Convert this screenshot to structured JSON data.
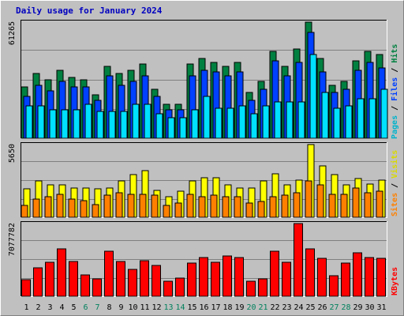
{
  "title": "Daily usage for January 2024",
  "colors": {
    "hits": "#008040",
    "files": "#0040ff",
    "pages": "#00e0ff",
    "visits": "#ffff00",
    "sites": "#ff8000",
    "kbytes": "#ff0000",
    "weekend": "#00805c",
    "weekday": "#000000"
  },
  "chart_data": [
    {
      "type": "bar",
      "panel": "hits-files-pages",
      "ymax_label": "61265",
      "ylim": [
        0,
        61265
      ],
      "legend": {
        "pages": "Pages",
        "files": "Files",
        "hits": "Hits",
        "sep": "/"
      },
      "categories": [
        "1",
        "2",
        "3",
        "4",
        "5",
        "6",
        "7",
        "8",
        "9",
        "10",
        "11",
        "12",
        "13",
        "14",
        "15",
        "16",
        "17",
        "18",
        "19",
        "20",
        "21",
        "22",
        "23",
        "24",
        "25",
        "26",
        "27",
        "28",
        "29",
        "30",
        "31"
      ],
      "weekend": [
        6,
        7,
        13,
        14,
        20,
        21,
        27,
        28
      ],
      "series": [
        {
          "name": "Hits",
          "key": "hits",
          "values": [
            27000,
            34000,
            31000,
            36000,
            32000,
            31000,
            23000,
            38000,
            34000,
            36000,
            39000,
            26000,
            18000,
            18000,
            39000,
            42000,
            40000,
            38000,
            40000,
            24000,
            30000,
            46000,
            38000,
            47000,
            61265,
            42000,
            28000,
            30000,
            41000,
            46000,
            44000
          ]
        },
        {
          "name": "Files",
          "key": "files",
          "values": [
            22000,
            28000,
            25000,
            30000,
            27000,
            27000,
            20000,
            33000,
            28000,
            30000,
            33000,
            22000,
            15000,
            15000,
            33000,
            36000,
            35000,
            33000,
            35000,
            20000,
            26000,
            41000,
            33000,
            40000,
            56000,
            35000,
            24000,
            26000,
            36000,
            40000,
            37000
          ]
        },
        {
          "name": "Pages",
          "key": "pages",
          "values": [
            17000,
            17000,
            15000,
            15000,
            15000,
            18000,
            14000,
            14000,
            14000,
            18000,
            18000,
            13000,
            11000,
            11000,
            15000,
            22000,
            16000,
            16000,
            17000,
            13000,
            17000,
            19000,
            19000,
            19000,
            44000,
            24000,
            16000,
            17000,
            21000,
            21000,
            26000
          ]
        }
      ]
    },
    {
      "type": "bar",
      "panel": "visits-sites",
      "ymax_label": "5650",
      "ylim": [
        0,
        5650
      ],
      "legend": {
        "sites": "Sites",
        "visits": "Visits",
        "sep": "/"
      },
      "categories": [
        "1",
        "2",
        "3",
        "4",
        "5",
        "6",
        "7",
        "8",
        "9",
        "10",
        "11",
        "12",
        "13",
        "14",
        "15",
        "16",
        "17",
        "18",
        "19",
        "20",
        "21",
        "22",
        "23",
        "24",
        "25",
        "26",
        "27",
        "28",
        "29",
        "30",
        "31"
      ],
      "series": [
        {
          "name": "Visits",
          "key": "visits",
          "values": [
            2200,
            2800,
            2500,
            2500,
            2300,
            2300,
            2200,
            2300,
            2800,
            3300,
            3600,
            2100,
            1600,
            2000,
            2800,
            3100,
            3100,
            2500,
            2300,
            2300,
            2800,
            3400,
            2500,
            2900,
            5650,
            4000,
            3300,
            2500,
            3000,
            2600,
            2900
          ]
        },
        {
          "name": "Sites",
          "key": "sites",
          "values": [
            950,
            1400,
            1600,
            1800,
            1400,
            1300,
            1000,
            1700,
            1900,
            1800,
            1800,
            1700,
            900,
            1100,
            1800,
            1600,
            1700,
            1600,
            1600,
            1100,
            1200,
            1600,
            1700,
            1900,
            2800,
            2500,
            1800,
            1800,
            2300,
            1900,
            2000
          ]
        }
      ]
    },
    {
      "type": "bar",
      "panel": "kbytes",
      "ymax_label": "7077782",
      "ylim": [
        0,
        7077782
      ],
      "legend": {
        "kbytes": "KBytes"
      },
      "categories": [
        "1",
        "2",
        "3",
        "4",
        "5",
        "6",
        "7",
        "8",
        "9",
        "10",
        "11",
        "12",
        "13",
        "14",
        "15",
        "16",
        "17",
        "18",
        "19",
        "20",
        "21",
        "22",
        "23",
        "24",
        "25",
        "26",
        "27",
        "28",
        "29",
        "30",
        "31"
      ],
      "series": [
        {
          "name": "KBytes",
          "key": "kbytes",
          "values": [
            1600000,
            2800000,
            3300000,
            4600000,
            3400000,
            2100000,
            1700000,
            4400000,
            3400000,
            2600000,
            3500000,
            3000000,
            1500000,
            1800000,
            3200000,
            3800000,
            3300000,
            3900000,
            3800000,
            1500000,
            1700000,
            4400000,
            3300000,
            7077782,
            4600000,
            3700000,
            2000000,
            3200000,
            4200000,
            3800000,
            3700000
          ]
        }
      ]
    }
  ]
}
